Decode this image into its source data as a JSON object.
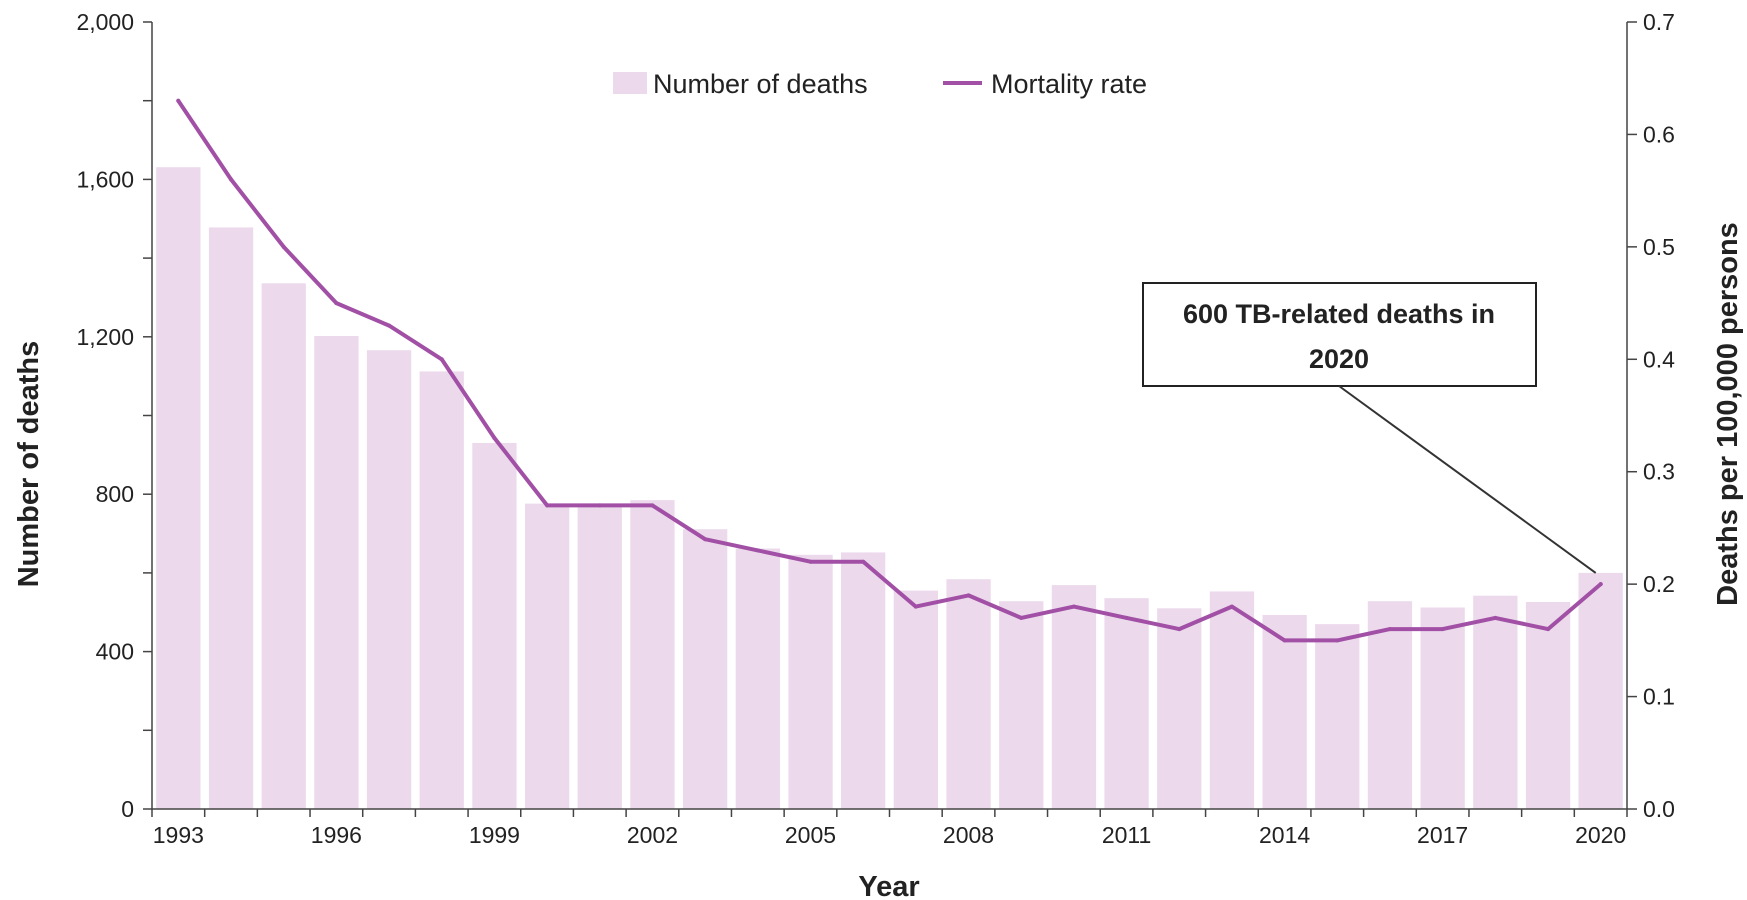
{
  "chart_data": {
    "type": "bar",
    "x": [
      1993,
      1994,
      1995,
      1996,
      1997,
      1998,
      1999,
      2000,
      2001,
      2002,
      2003,
      2004,
      2005,
      2006,
      2007,
      2008,
      2009,
      2010,
      2011,
      2012,
      2013,
      2014,
      2015,
      2016,
      2017,
      2018,
      2019,
      2020
    ],
    "series": [
      {
        "name": "Number of deaths",
        "type": "bar",
        "axis": "left",
        "color": "#ecdaec",
        "values": [
          1631,
          1478,
          1336,
          1202,
          1166,
          1112,
          930,
          776,
          772,
          785,
          711,
          662,
          646,
          652,
          555,
          584,
          528,
          569,
          536,
          510,
          553,
          493,
          470,
          528,
          512,
          542,
          526,
          600
        ]
      },
      {
        "name": "Mortality rate",
        "type": "line",
        "axis": "right",
        "color": "#a150a6",
        "values": [
          0.63,
          0.56,
          0.5,
          0.45,
          0.43,
          0.4,
          0.33,
          0.27,
          0.27,
          0.27,
          0.24,
          0.23,
          0.22,
          0.22,
          0.18,
          0.19,
          0.17,
          0.18,
          0.17,
          0.16,
          0.18,
          0.15,
          0.15,
          0.16,
          0.16,
          0.17,
          0.16,
          0.2
        ]
      }
    ],
    "xlabel": "Year",
    "ylabel": "Number of deaths",
    "y2label": "Deaths per 100,000 persons",
    "ylim": [
      0,
      2000
    ],
    "y2lim": [
      0,
      0.7
    ],
    "yticks": [
      "0",
      "400",
      "800",
      "1,200",
      "1,600",
      "2,000"
    ],
    "y2ticks": [
      "0.0",
      "0.1",
      "0.2",
      "0.3",
      "0.4",
      "0.5",
      "0.6",
      "0.7"
    ],
    "xticks": [
      "1993",
      "1996",
      "1999",
      "2002",
      "2005",
      "2008",
      "2011",
      "2014",
      "2017",
      "2020"
    ],
    "legend": {
      "position": "top-center",
      "items": [
        "Number of deaths",
        "Mortality rate"
      ]
    },
    "grid": false,
    "annotation": {
      "line1": "600 TB-related deaths in",
      "line2": "2020",
      "target_year": 2020
    }
  }
}
